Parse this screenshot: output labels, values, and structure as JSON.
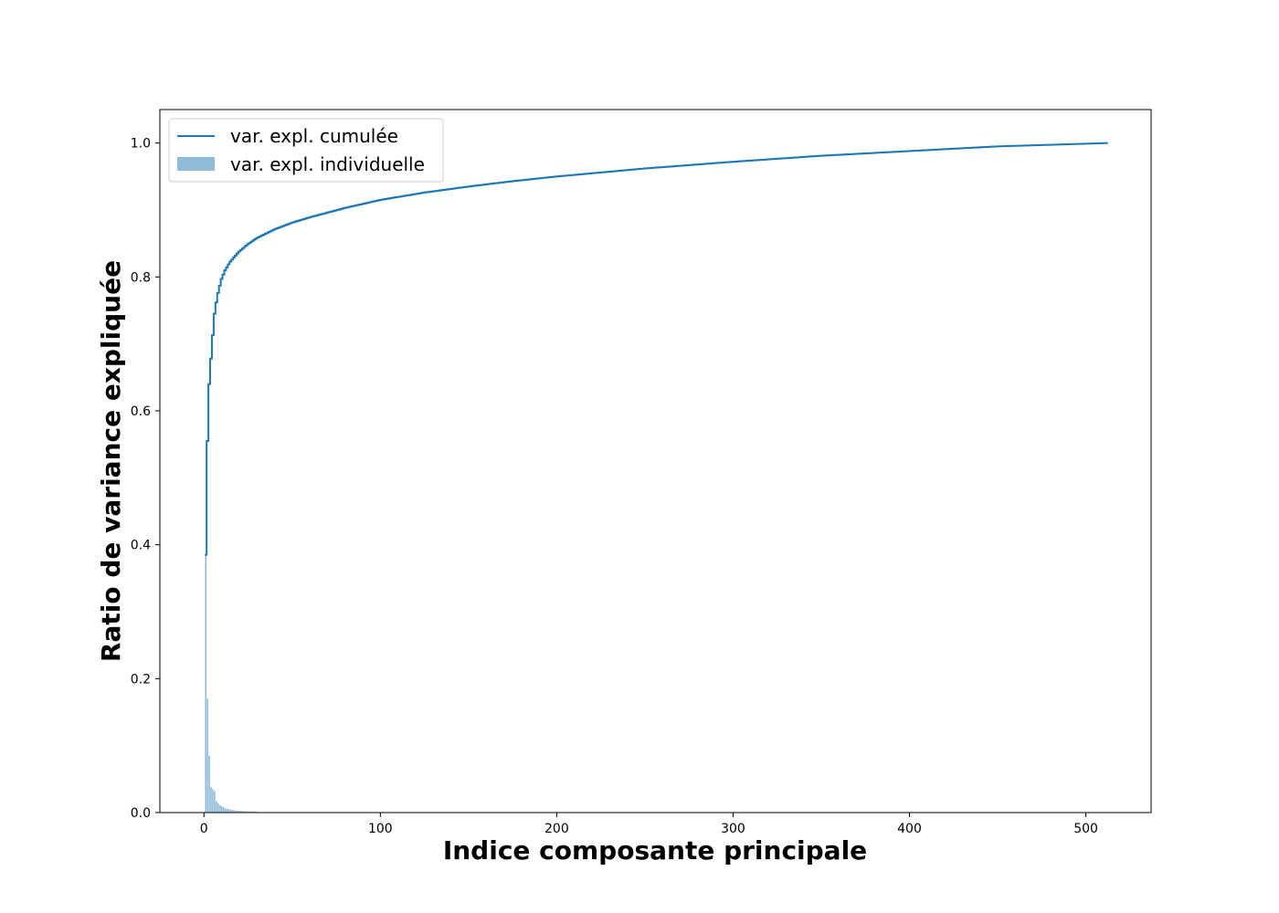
{
  "chart_data": {
    "type": "bar",
    "title": "",
    "xlabel": "Indice composante principale",
    "ylabel": "Ratio de variance expliquée",
    "xlim": [
      -25,
      537
    ],
    "ylim": [
      0,
      1.05
    ],
    "x_ticks": [
      0,
      100,
      200,
      300,
      400,
      500
    ],
    "y_ticks": [
      0.0,
      0.2,
      0.4,
      0.6,
      0.8,
      1.0
    ],
    "x_tick_labels": [
      "0",
      "100",
      "200",
      "300",
      "400",
      "500"
    ],
    "y_tick_labels": [
      "0.0",
      "0.2",
      "0.4",
      "0.6",
      "0.8",
      "1.0"
    ],
    "grid": false,
    "legend_position": "top-left",
    "n_components": 512,
    "series": [
      {
        "name": "var. expl. cumulée",
        "kind": "step",
        "color": "#1f77b4",
        "points": [
          [
            1,
            0.385
          ],
          [
            2,
            0.555
          ],
          [
            3,
            0.64
          ],
          [
            4,
            0.678
          ],
          [
            5,
            0.713
          ],
          [
            6,
            0.745
          ],
          [
            7,
            0.762
          ],
          [
            8,
            0.776
          ],
          [
            9,
            0.787
          ],
          [
            10,
            0.797
          ],
          [
            12,
            0.81
          ],
          [
            15,
            0.823
          ],
          [
            20,
            0.838
          ],
          [
            25,
            0.849
          ],
          [
            30,
            0.858
          ],
          [
            40,
            0.871
          ],
          [
            50,
            0.881
          ],
          [
            60,
            0.889
          ],
          [
            70,
            0.896
          ],
          [
            80,
            0.903
          ],
          [
            90,
            0.909
          ],
          [
            100,
            0.915
          ],
          [
            125,
            0.926
          ],
          [
            150,
            0.935
          ],
          [
            175,
            0.943
          ],
          [
            200,
            0.95
          ],
          [
            250,
            0.962
          ],
          [
            300,
            0.972
          ],
          [
            350,
            0.981
          ],
          [
            400,
            0.988
          ],
          [
            450,
            0.995
          ],
          [
            500,
            0.999
          ],
          [
            512,
            1.0
          ]
        ]
      },
      {
        "name": "var. expl. individuelle",
        "kind": "bar",
        "color": "#1f77b4",
        "opacity": 0.5,
        "values": [
          0.385,
          0.17,
          0.085,
          0.038,
          0.035,
          0.032,
          0.017,
          0.014,
          0.011,
          0.01,
          0.008,
          0.0065,
          0.0055,
          0.005,
          0.0045,
          0.004,
          0.0035,
          0.003,
          0.0028,
          0.0026,
          0.0024,
          0.0022,
          0.002,
          0.0019,
          0.0018,
          0.0017,
          0.0016,
          0.0015,
          0.0014,
          0.0013
        ],
        "tail_value": 0.0004
      }
    ]
  }
}
